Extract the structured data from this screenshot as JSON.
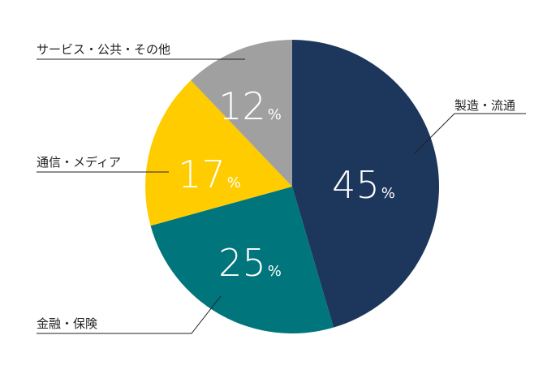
{
  "chart_data": {
    "type": "pie",
    "categories": [
      "製造・流通",
      "金融・保険",
      "通信・メディア",
      "サービス・公共・その他"
    ],
    "values": [
      45,
      25,
      17,
      12
    ],
    "unit": "%",
    "colors": [
      "#1d365c",
      "#00757c",
      "#ffcc00",
      "#a0a0a0"
    ]
  }
}
